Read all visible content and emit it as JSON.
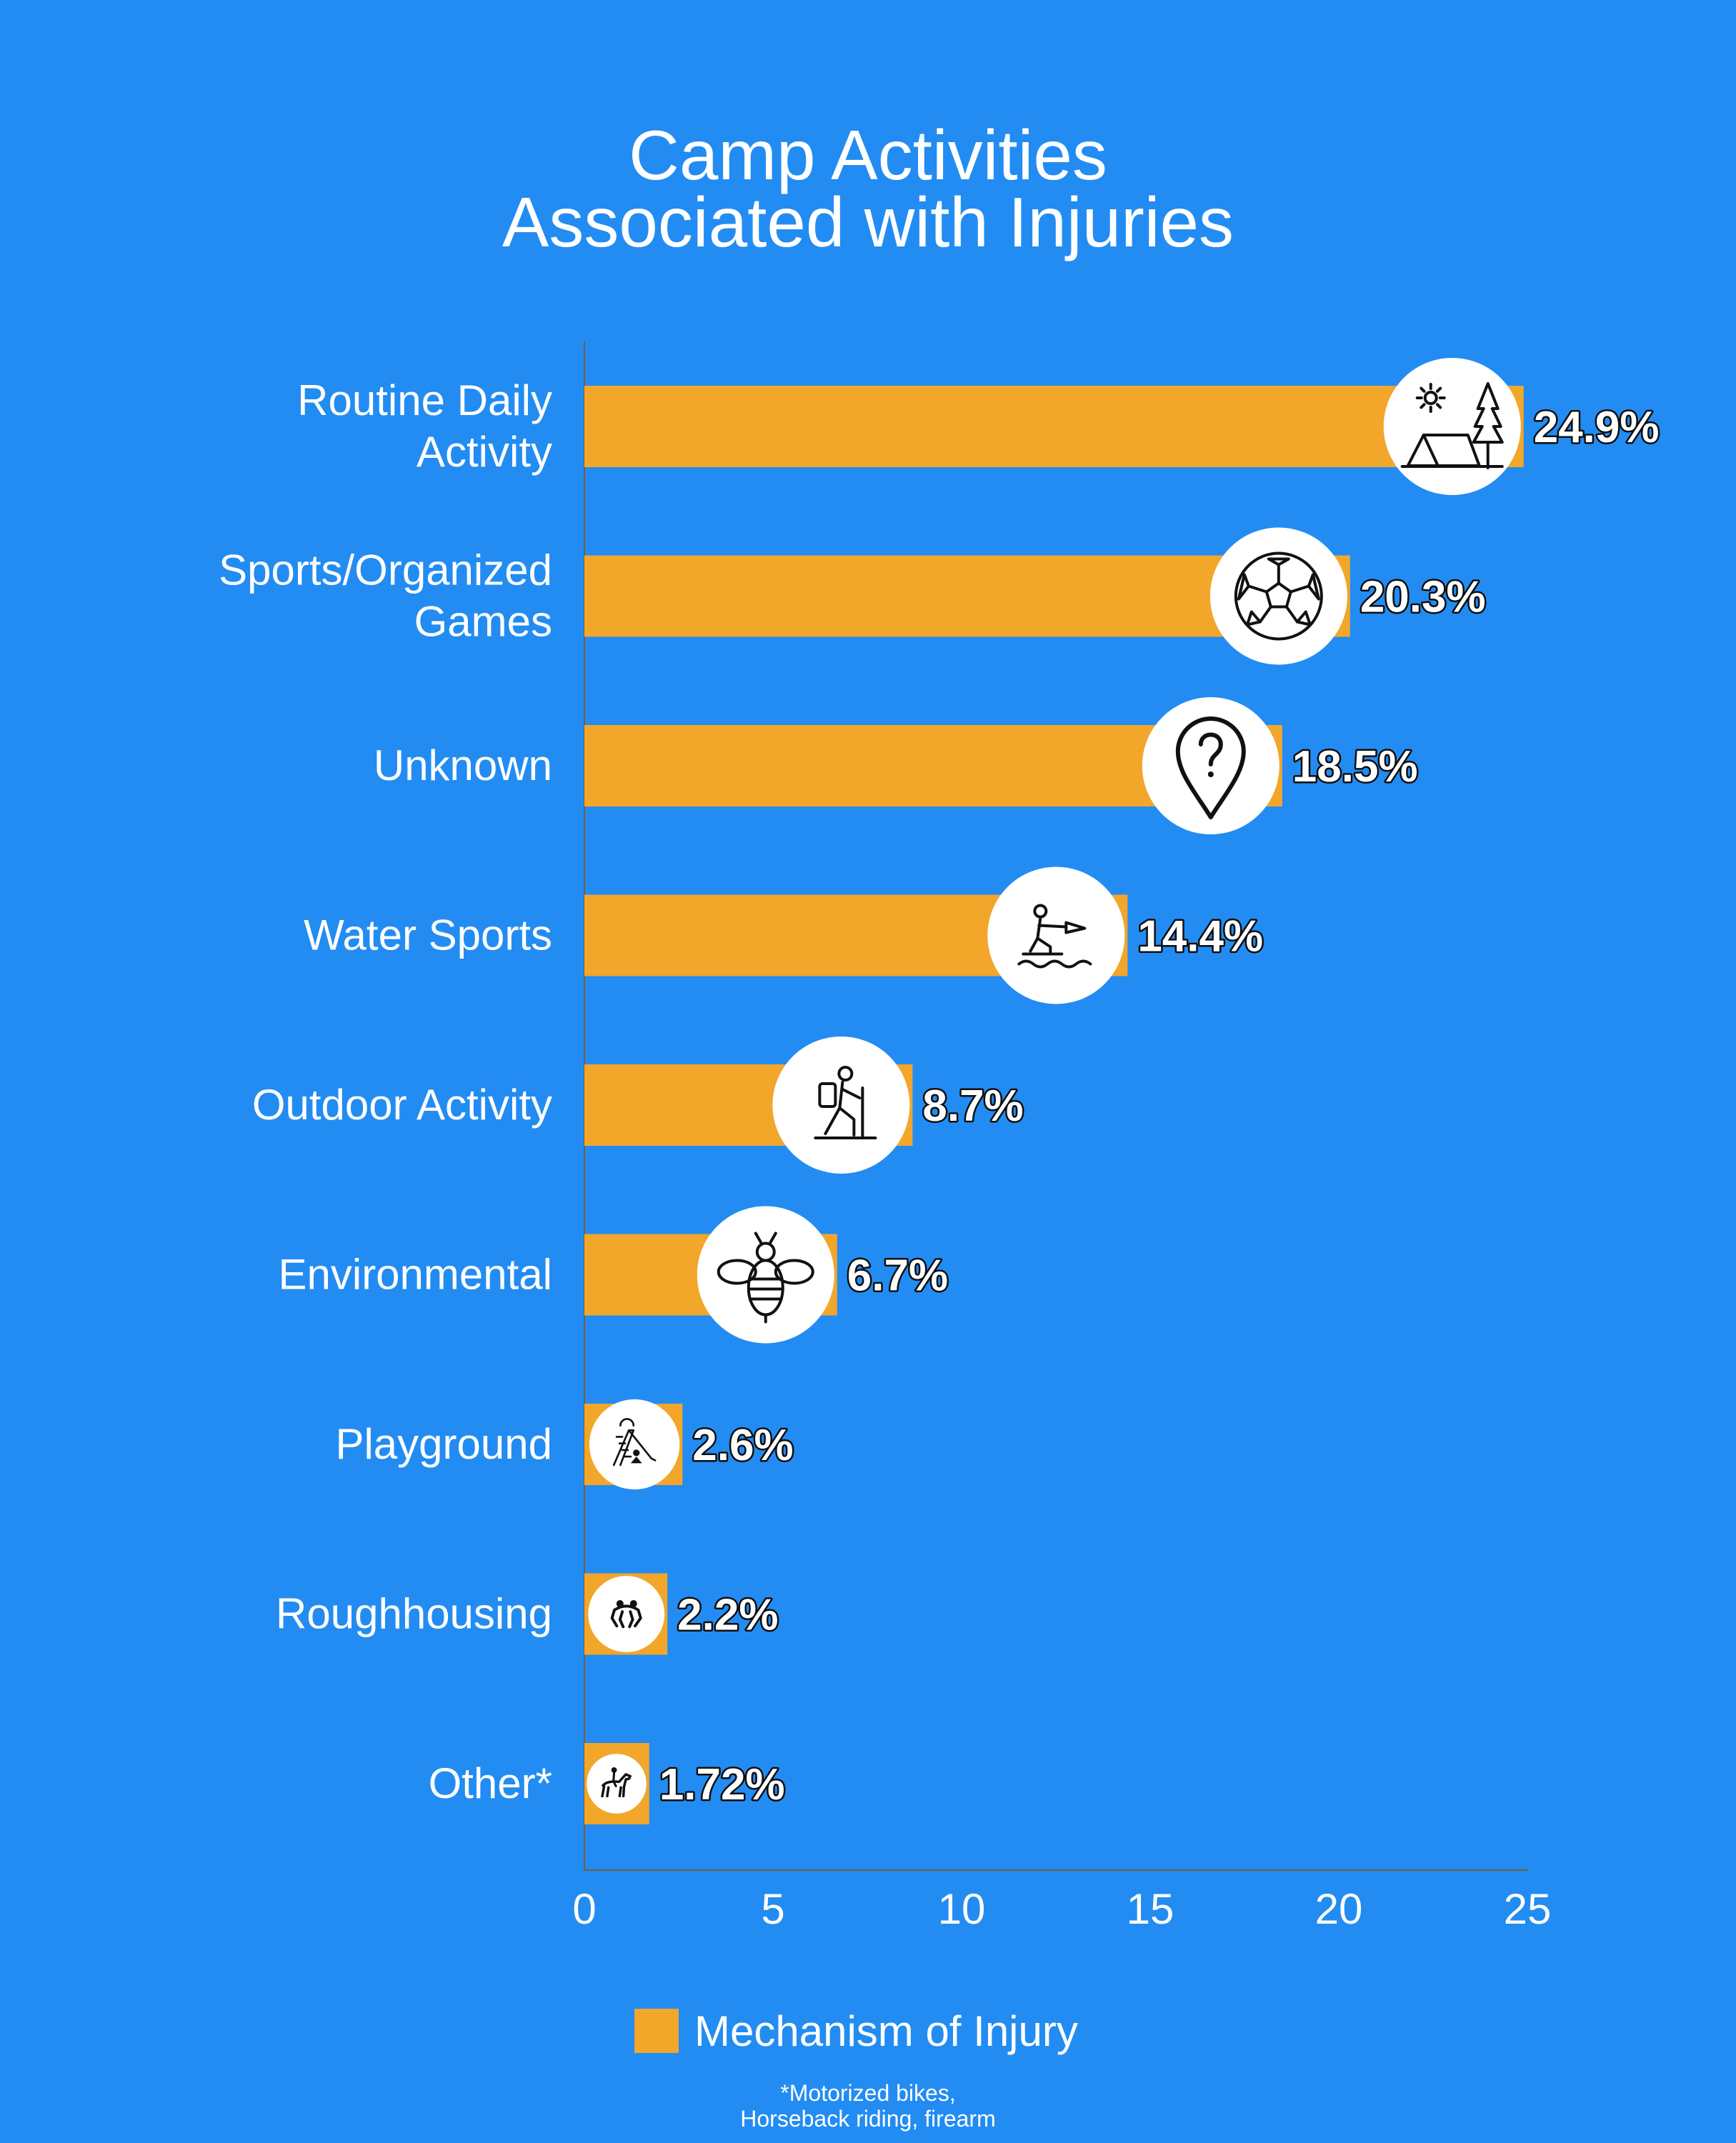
{
  "title": {
    "line1": "Camp Activities",
    "line2": "Associated with Injuries"
  },
  "legend": {
    "label": "Mechanism of Injury",
    "color": "#f2a62a"
  },
  "footnote": {
    "line1": "*Motorized bikes,",
    "line2": "Horseback riding, firearm"
  },
  "colors": {
    "background": "#228cf3",
    "bar": "#f2a62a",
    "axis": "#7a5a3a"
  },
  "chart_data": {
    "type": "bar",
    "orientation": "horizontal",
    "title": "Camp Activities Associated with Injuries",
    "xlim": [
      0,
      25
    ],
    "xticks": [
      0,
      5,
      10,
      15,
      20,
      25
    ],
    "grid": false,
    "legend_position": "bottom",
    "categories": [
      {
        "label_lines": [
          "Routine Daily",
          "Activity"
        ],
        "value": 24.9,
        "value_label": "24.9%",
        "icon": "camping-tent-tree-icon"
      },
      {
        "label_lines": [
          "Sports/Organized",
          "Games"
        ],
        "value": 20.3,
        "value_label": "20.3%",
        "icon": "soccer-ball-icon"
      },
      {
        "label_lines": [
          "Unknown"
        ],
        "value": 18.5,
        "value_label": "18.5%",
        "icon": "question-location-pin-icon"
      },
      {
        "label_lines": [
          "Water Sports"
        ],
        "value": 14.4,
        "value_label": "14.4%",
        "icon": "water-skier-icon"
      },
      {
        "label_lines": [
          "Outdoor Activity"
        ],
        "value": 8.7,
        "value_label": "8.7%",
        "icon": "hiker-icon"
      },
      {
        "label_lines": [
          "Environmental"
        ],
        "value": 6.7,
        "value_label": "6.7%",
        "icon": "bee-icon"
      },
      {
        "label_lines": [
          "Playground"
        ],
        "value": 2.6,
        "value_label": "2.6%",
        "icon": "playground-slide-icon"
      },
      {
        "label_lines": [
          "Roughhousing"
        ],
        "value": 2.2,
        "value_label": "2.2%",
        "icon": "wrestlers-icon"
      },
      {
        "label_lines": [
          "Other*"
        ],
        "value": 1.72,
        "value_label": "1.72%",
        "icon": "horse-rider-icon"
      }
    ],
    "series": [
      {
        "name": "Mechanism of Injury"
      }
    ]
  }
}
